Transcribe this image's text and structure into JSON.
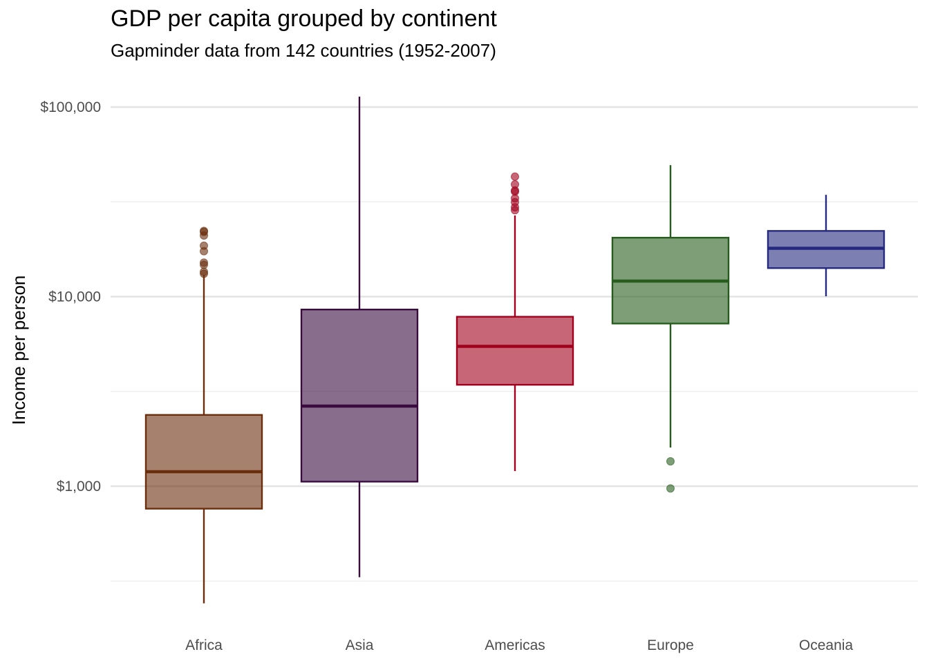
{
  "chart_data": {
    "type": "boxplot",
    "title": "GDP per capita grouped by continent",
    "subtitle": "Gapminder data from 142 countries (1952-2007)",
    "xlabel": "",
    "ylabel": "Income per person",
    "y_scale": "log10",
    "ylim": [
      220,
      125000
    ],
    "y_ticks": [
      {
        "value": 1000,
        "label": "$1,000"
      },
      {
        "value": 10000,
        "label": "$10,000"
      },
      {
        "value": 100000,
        "label": "$100,000"
      }
    ],
    "y_minor_ticks": [
      316,
      3162,
      31623
    ],
    "grid": true,
    "legend": "none",
    "categories": [
      "Africa",
      "Asia",
      "Americas",
      "Europe",
      "Oceania"
    ],
    "series": [
      {
        "category": "Africa",
        "color": "#6b2e0d",
        "whisker_low": 241,
        "q1": 761,
        "median": 1192,
        "q3": 2377,
        "whisker_high": 13000,
        "outliers": [
          13206,
          13522,
          14723,
          15113,
          17364,
          18558,
          21011,
          21951,
          22200
        ]
      },
      {
        "category": "Asia",
        "color": "#3a0b3f",
        "whisker_low": 331,
        "q1": 1057,
        "median": 2647,
        "q3": 8549,
        "whisker_high": 113523,
        "outliers": []
      },
      {
        "category": "Americas",
        "color": "#a0001c",
        "whisker_low": 1202,
        "q1": 3428,
        "median": 5466,
        "q3": 7831,
        "whisker_high": 26800,
        "outliers": [
          28570,
          29600,
          31500,
          33000,
          35800,
          36300,
          39100,
          42952
        ]
      },
      {
        "category": "Europe",
        "color": "#265d1c",
        "whisker_low": 1600,
        "q1": 7213,
        "median": 12082,
        "q3": 20461,
        "whisker_high": 49357,
        "outliers": [
          973,
          1353
        ]
      },
      {
        "category": "Oceania",
        "color": "#24297f",
        "whisker_low": 10040,
        "q1": 14142,
        "median": 17983,
        "q3": 22214,
        "whisker_high": 34435,
        "outliers": []
      }
    ]
  }
}
